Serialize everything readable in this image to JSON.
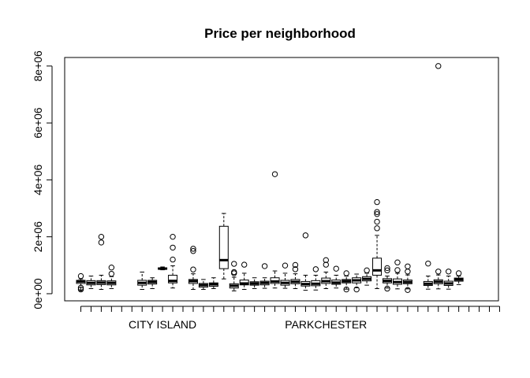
{
  "chart_data": {
    "type": "boxplot",
    "title": "Price per neighborhood",
    "xlabel": "",
    "ylabel": "",
    "ylim": [
      -250000,
      8300000
    ],
    "yticks": [
      0,
      2000000,
      4000000,
      6000000,
      8000000
    ],
    "ytick_labels": [
      "0e+00",
      "2e+06",
      "4e+06",
      "6e+06",
      "8e+06"
    ],
    "n_categories": 42,
    "xtick_labels": [
      {
        "category_index": 9,
        "label": "CITY ISLAND"
      },
      {
        "category_index": 25,
        "label": "PARKCHESTER"
      }
    ],
    "boxes": [
      {
        "index": 1,
        "whisker_low": 100000,
        "q1": 360000,
        "median": 430000,
        "q3": 470000,
        "whisker_high": 520000,
        "outliers": [
          620000,
          210000,
          150000
        ]
      },
      {
        "index": 2,
        "whisker_low": 180000,
        "q1": 310000,
        "median": 380000,
        "q3": 460000,
        "whisker_high": 620000,
        "outliers": []
      },
      {
        "index": 3,
        "whisker_low": 150000,
        "q1": 320000,
        "median": 390000,
        "q3": 460000,
        "whisker_high": 650000,
        "outliers": [
          1800000,
          2000000
        ]
      },
      {
        "index": 4,
        "whisker_low": 180000,
        "q1": 310000,
        "median": 380000,
        "q3": 450000,
        "whisker_high": 600000,
        "outliers": [
          700000,
          920000
        ]
      },
      {
        "index": 7,
        "whisker_low": 150000,
        "q1": 300000,
        "median": 380000,
        "q3": 470000,
        "whisker_high": 760000,
        "outliers": []
      },
      {
        "index": 8,
        "whisker_low": 180000,
        "q1": 340000,
        "median": 410000,
        "q3": 470000,
        "whisker_high": 560000,
        "outliers": []
      },
      {
        "index": 9,
        "whisker_low": 840000,
        "q1": 860000,
        "median": 880000,
        "q3": 910000,
        "whisker_high": 940000,
        "outliers": []
      },
      {
        "index": 10,
        "whisker_low": 200000,
        "q1": 380000,
        "median": 450000,
        "q3": 650000,
        "whisker_high": 980000,
        "outliers": [
          1200000,
          1620000,
          2000000
        ]
      },
      {
        "index": 12,
        "whisker_low": 150000,
        "q1": 360000,
        "median": 440000,
        "q3": 500000,
        "whisker_high": 700000,
        "outliers": [
          850000,
          1500000,
          1580000
        ]
      },
      {
        "index": 13,
        "whisker_low": 150000,
        "q1": 230000,
        "median": 300000,
        "q3": 360000,
        "whisker_high": 500000,
        "outliers": []
      },
      {
        "index": 14,
        "whisker_low": 180000,
        "q1": 260000,
        "median": 330000,
        "q3": 380000,
        "whisker_high": 560000,
        "outliers": []
      },
      {
        "index": 15,
        "whisker_low": 520000,
        "q1": 880000,
        "median": 1180000,
        "q3": 2370000,
        "whisker_high": 2820000,
        "outliers": []
      },
      {
        "index": 16,
        "whisker_low": 100000,
        "q1": 200000,
        "median": 280000,
        "q3": 350000,
        "whisker_high": 580000,
        "outliers": [
          720000,
          760000,
          1050000
        ]
      },
      {
        "index": 17,
        "whisker_low": 150000,
        "q1": 310000,
        "median": 360000,
        "q3": 480000,
        "whisker_high": 720000,
        "outliers": [
          1020000
        ]
      },
      {
        "index": 18,
        "whisker_low": 180000,
        "q1": 300000,
        "median": 360000,
        "q3": 420000,
        "whisker_high": 560000,
        "outliers": []
      },
      {
        "index": 19,
        "whisker_low": 190000,
        "q1": 310000,
        "median": 380000,
        "q3": 440000,
        "whisker_high": 560000,
        "outliers": [
          970000
        ]
      },
      {
        "index": 20,
        "whisker_low": 200000,
        "q1": 360000,
        "median": 430000,
        "q3": 560000,
        "whisker_high": 800000,
        "outliers": [
          4200000
        ]
      },
      {
        "index": 21,
        "whisker_low": 190000,
        "q1": 300000,
        "median": 380000,
        "q3": 470000,
        "whisker_high": 720000,
        "outliers": [
          990000
        ]
      },
      {
        "index": 22,
        "whisker_low": 180000,
        "q1": 350000,
        "median": 420000,
        "q3": 500000,
        "whisker_high": 700000,
        "outliers": [
          860000,
          1010000
        ]
      },
      {
        "index": 23,
        "whisker_low": 120000,
        "q1": 270000,
        "median": 340000,
        "q3": 430000,
        "whisker_high": 650000,
        "outliers": [
          2050000
        ]
      },
      {
        "index": 24,
        "whisker_low": 130000,
        "q1": 280000,
        "median": 350000,
        "q3": 460000,
        "whisker_high": 650000,
        "outliers": [
          860000
        ]
      },
      {
        "index": 25,
        "whisker_low": 180000,
        "q1": 360000,
        "median": 440000,
        "q3": 550000,
        "whisker_high": 760000,
        "outliers": [
          1020000,
          1180000
        ]
      },
      {
        "index": 26,
        "whisker_low": 200000,
        "q1": 330000,
        "median": 390000,
        "q3": 480000,
        "whisker_high": 650000,
        "outliers": [
          880000
        ]
      },
      {
        "index": 27,
        "whisker_low": 160000,
        "q1": 380000,
        "median": 440000,
        "q3": 500000,
        "whisker_high": 620000,
        "outliers": [
          720000,
          150000
        ]
      },
      {
        "index": 28,
        "whisker_low": 210000,
        "q1": 380000,
        "median": 470000,
        "q3": 560000,
        "whisker_high": 690000,
        "outliers": [
          150000
        ]
      },
      {
        "index": 29,
        "whisker_low": 300000,
        "q1": 450000,
        "median": 520000,
        "q3": 600000,
        "whisker_high": 720000,
        "outliers": [
          820000
        ]
      },
      {
        "index": 30,
        "whisker_low": 180000,
        "q1": 650000,
        "median": 820000,
        "q3": 1250000,
        "whisker_high": 2050000,
        "outliers": [
          2300000,
          2530000,
          2800000,
          2870000,
          3220000
        ]
      },
      {
        "index": 31,
        "whisker_low": 200000,
        "q1": 380000,
        "median": 450000,
        "q3": 530000,
        "whisker_high": 620000,
        "outliers": [
          820000,
          900000,
          180000
        ]
      },
      {
        "index": 32,
        "whisker_low": 170000,
        "q1": 330000,
        "median": 410000,
        "q3": 520000,
        "whisker_high": 720000,
        "outliers": [
          830000,
          1100000
        ]
      },
      {
        "index": 33,
        "whisker_low": 170000,
        "q1": 350000,
        "median": 410000,
        "q3": 480000,
        "whisker_high": 660000,
        "outliers": [
          780000,
          960000,
          130000
        ]
      },
      {
        "index": 35,
        "whisker_low": 160000,
        "q1": 290000,
        "median": 350000,
        "q3": 430000,
        "whisker_high": 620000,
        "outliers": [
          1060000
        ]
      },
      {
        "index": 36,
        "whisker_low": 170000,
        "q1": 350000,
        "median": 420000,
        "q3": 490000,
        "whisker_high": 660000,
        "outliers": [
          780000,
          8000000
        ]
      },
      {
        "index": 37,
        "whisker_low": 160000,
        "q1": 290000,
        "median": 360000,
        "q3": 440000,
        "whisker_high": 620000,
        "outliers": [
          780000
        ]
      },
      {
        "index": 38,
        "whisker_low": 320000,
        "q1": 440000,
        "median": 500000,
        "q3": 550000,
        "whisker_high": 620000,
        "outliers": [
          720000
        ]
      }
    ]
  }
}
